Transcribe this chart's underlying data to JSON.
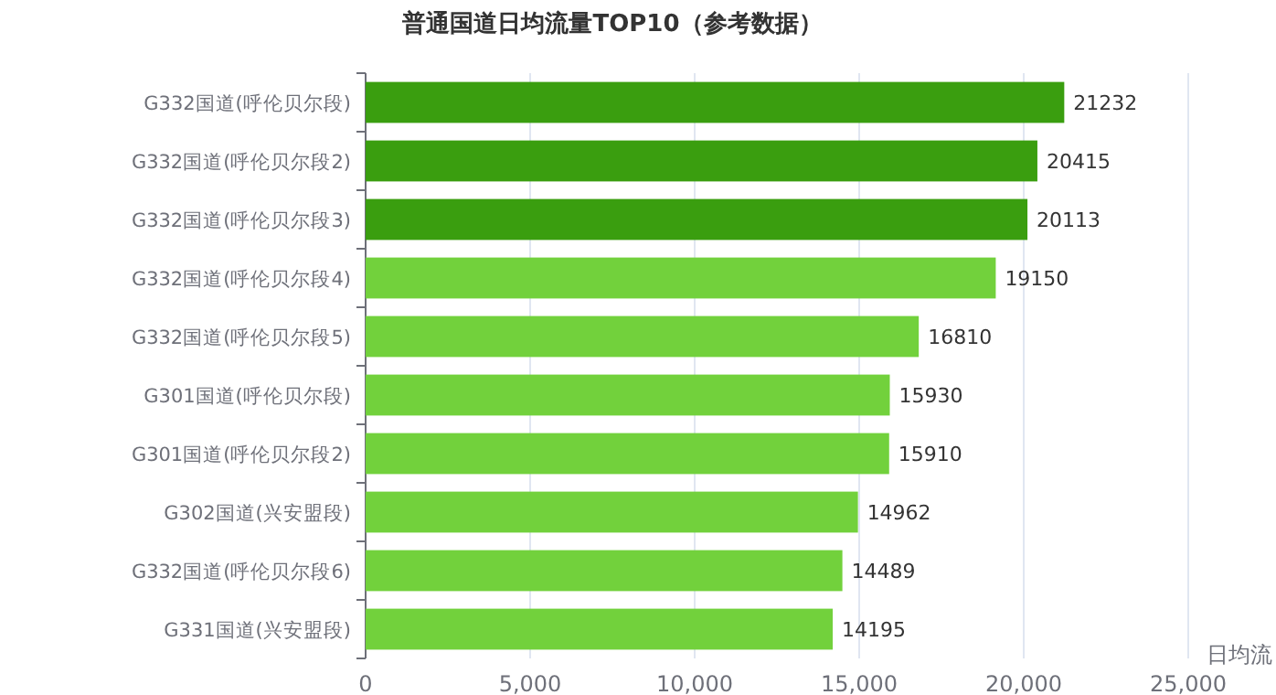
{
  "chart_data": {
    "type": "bar",
    "orientation": "horizontal",
    "title": "普通国道日均流量TOP10（参考数据）",
    "xlabel": "日均流",
    "categories": [
      "G332国道(呼伦贝尔段)",
      "G332国道(呼伦贝尔段2)",
      "G332国道(呼伦贝尔段3)",
      "G332国道(呼伦贝尔段4)",
      "G332国道(呼伦贝尔段5)",
      "G301国道(呼伦贝尔段)",
      "G301国道(呼伦贝尔段2)",
      "G302国道(兴安盟段)",
      "G332国道(呼伦贝尔段6)",
      "G331国道(兴安盟段)"
    ],
    "values": [
      21232,
      20415,
      20113,
      19150,
      16810,
      15930,
      15910,
      14962,
      14489,
      14195
    ],
    "colors": [
      "#3a9e0f",
      "#3a9e0f",
      "#3a9e0f",
      "#72d13c",
      "#72d13c",
      "#72d13c",
      "#72d13c",
      "#72d13c",
      "#72d13c",
      "#72d13c"
    ],
    "xlim": [
      0,
      25000
    ],
    "xticks": [
      {
        "value": 0,
        "label": "0"
      },
      {
        "value": 5000,
        "label": "5,000"
      },
      {
        "value": 10000,
        "label": "10,000"
      },
      {
        "value": 15000,
        "label": "15,000"
      },
      {
        "value": 20000,
        "label": "20,000"
      },
      {
        "value": 25000,
        "label": "25,000"
      }
    ],
    "grid": "x",
    "data_labels": true
  }
}
